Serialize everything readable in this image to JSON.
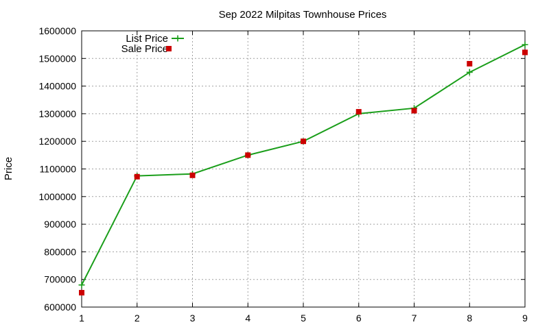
{
  "chart_data": {
    "type": "line",
    "title": "Sep 2022 Milpitas Townhouse Prices",
    "xlabel": "",
    "ylabel": "Price",
    "x": [
      1,
      2,
      3,
      4,
      5,
      6,
      7,
      8,
      9
    ],
    "xlim": [
      1,
      9
    ],
    "ylim": [
      600000,
      1600000
    ],
    "xticks": [
      "1",
      "2",
      "3",
      "4",
      "5",
      "6",
      "7",
      "8",
      "9"
    ],
    "yticks": [
      "600000",
      "700000",
      "800000",
      "900000",
      "1000000",
      "1100000",
      "1200000",
      "1300000",
      "1400000",
      "1500000",
      "1600000"
    ],
    "grid": true,
    "legend_position": "top-left",
    "series": [
      {
        "name": "List Price",
        "style": "linespoints",
        "color": "#1a9e1a",
        "marker": "plus",
        "values": [
          680000,
          1075000,
          1082000,
          1150000,
          1200000,
          1300000,
          1320000,
          1450000,
          1550000
        ]
      },
      {
        "name": "Sale Price",
        "style": "points",
        "color": "#cc0000",
        "marker": "square",
        "values": [
          652000,
          1072000,
          1077000,
          1150000,
          1200000,
          1307000,
          1311000,
          1481000,
          1522000
        ]
      }
    ]
  }
}
